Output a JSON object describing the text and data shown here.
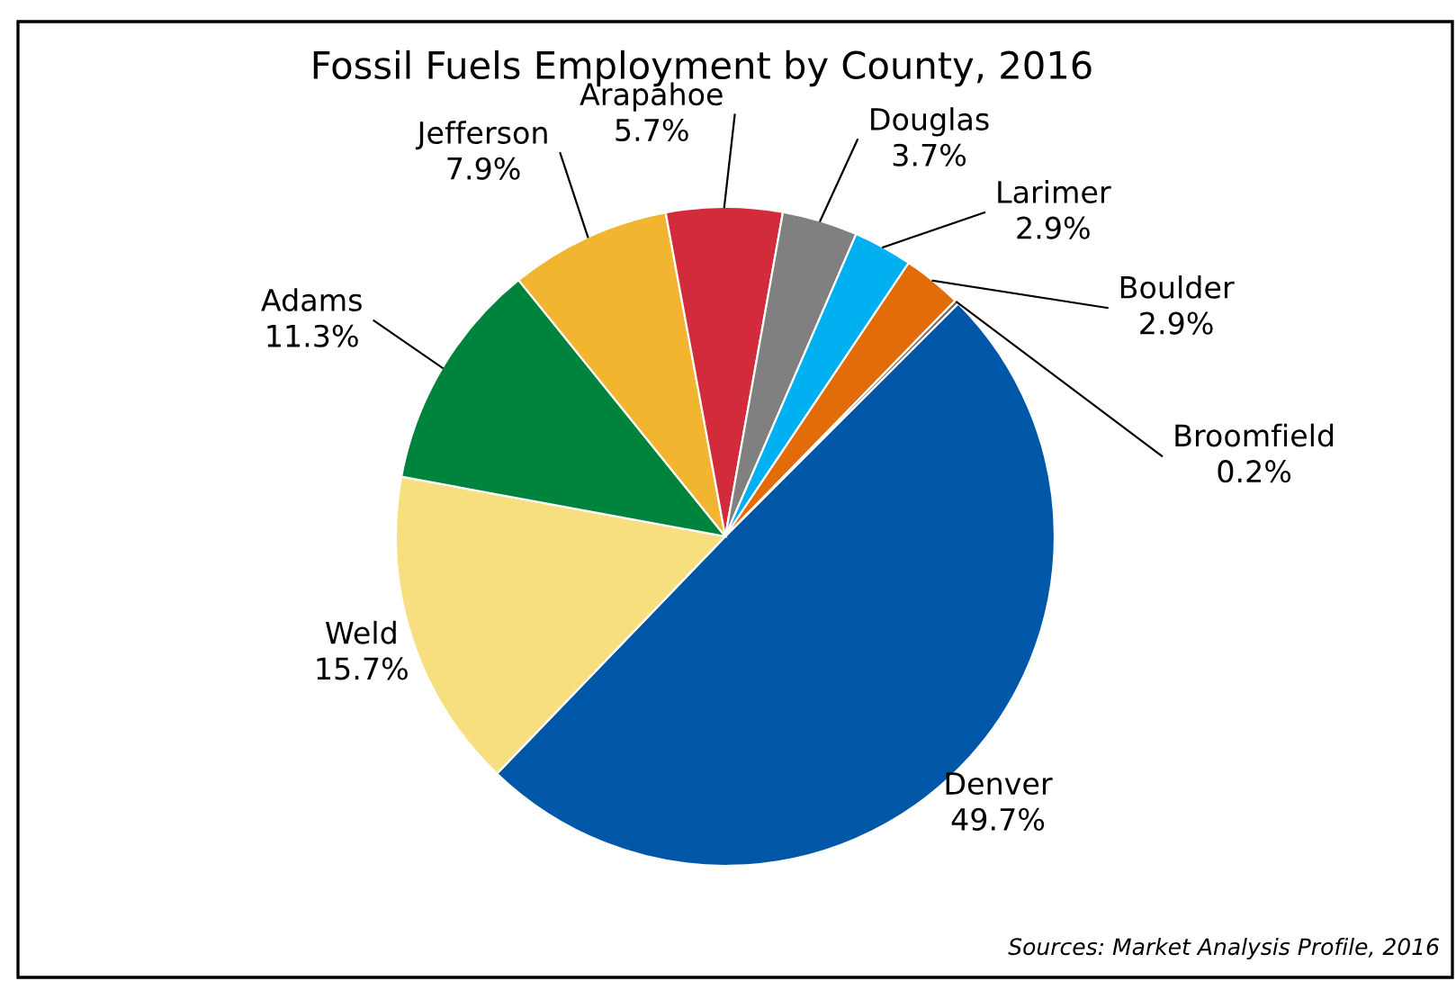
{
  "chart_data": {
    "type": "pie",
    "title": "Fossil Fuels Employment by County, 2016",
    "categories": [
      "Denver",
      "Weld",
      "Adams",
      "Jefferson",
      "Arapahoe",
      "Douglas",
      "Larimer",
      "Boulder",
      "Broomfield"
    ],
    "values": [
      49.7,
      15.7,
      11.3,
      7.9,
      5.7,
      3.7,
      2.9,
      2.9,
      0.2
    ],
    "value_labels": [
      "49.7%",
      "15.7%",
      "11.3%",
      "7.9%",
      "5.7%",
      "3.7%",
      "2.9%",
      "2.9%",
      "0.2%"
    ],
    "colors": [
      "#0057a8",
      "#f7df7f",
      "#00843d",
      "#f2b530",
      "#d22b3b",
      "#808080",
      "#00b0f0",
      "#e36c0a",
      "#7f6a55"
    ],
    "annotations": [
      "Sources: Market Analysis Profile, 2016"
    ],
    "legend": false
  }
}
